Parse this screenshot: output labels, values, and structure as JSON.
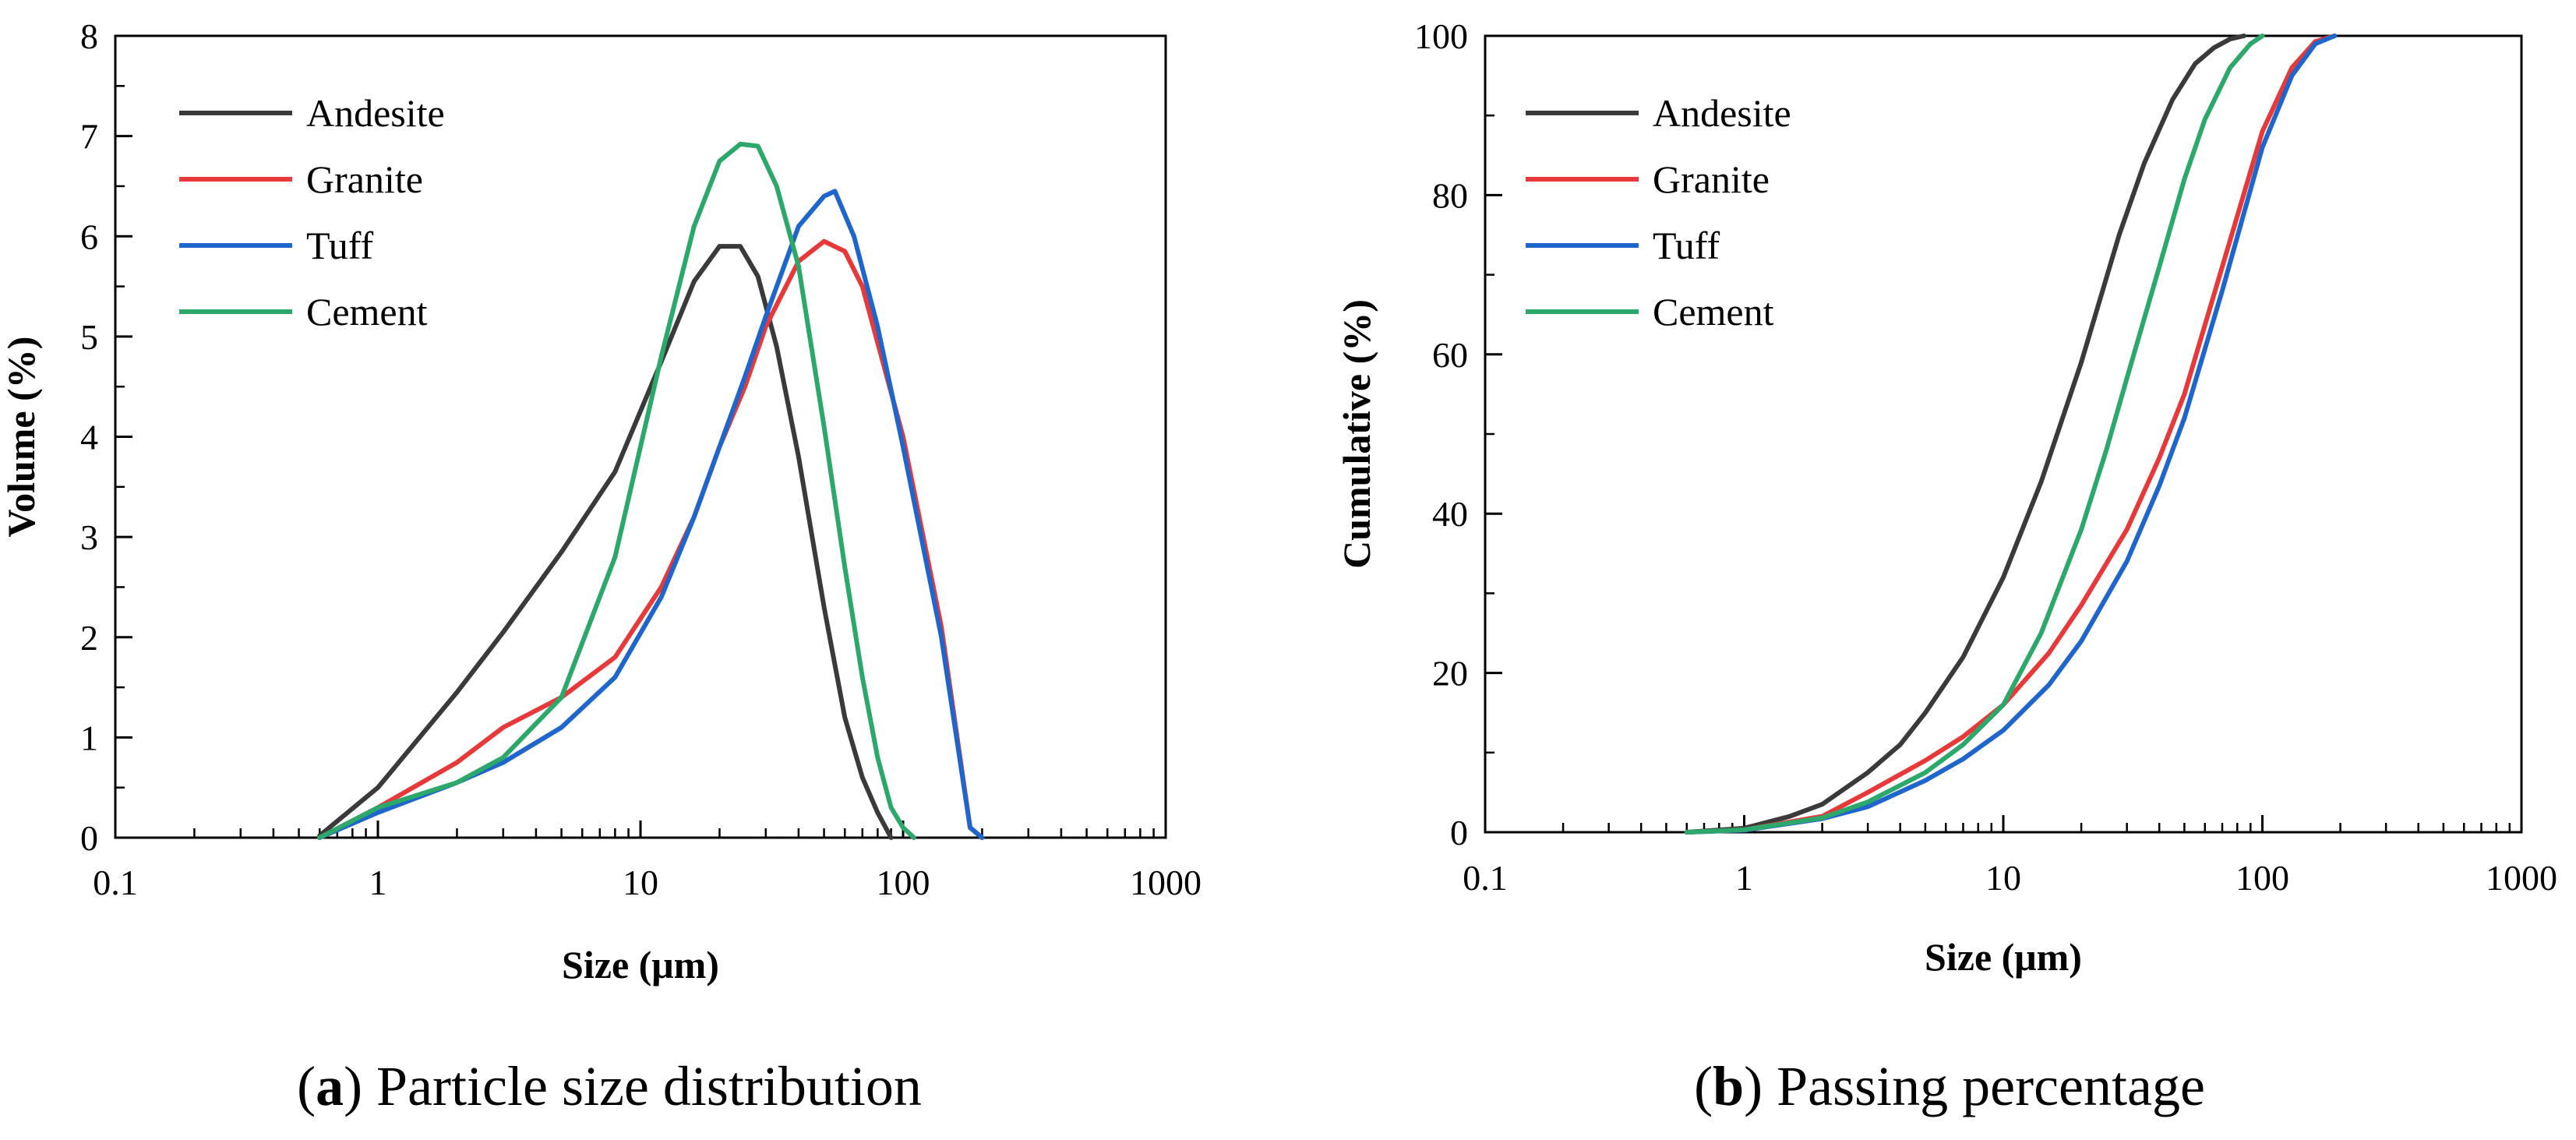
{
  "chart_data": [
    {
      "type": "line",
      "id": "a",
      "xscale": "log",
      "xlim": [
        0.1,
        1000
      ],
      "ylim": [
        0,
        8
      ],
      "xticks": [
        "0.1",
        "1",
        "10",
        "100",
        "1000"
      ],
      "yticks": [
        "0",
        "1",
        "2",
        "3",
        "4",
        "5",
        "6",
        "7",
        "8"
      ],
      "xlabel": "Size (μm)",
      "ylabel": "Volume (%)",
      "legend_position": "top-left",
      "caption_letter": "a",
      "caption_text": ") Particle size distribution",
      "caption_open": "(",
      "series": [
        {
          "name": "Andesite",
          "color": "#3a3a3a",
          "x": [
            0.6,
            1,
            2,
            3,
            5,
            8,
            12,
            16,
            20,
            24,
            28,
            33,
            40,
            50,
            60,
            70,
            80,
            90
          ],
          "y": [
            0.02,
            0.5,
            1.45,
            2.05,
            2.85,
            3.65,
            4.75,
            5.55,
            5.9,
            5.9,
            5.6,
            4.9,
            3.8,
            2.3,
            1.2,
            0.6,
            0.25,
            0.0
          ]
        },
        {
          "name": "Granite",
          "color": "#e8393a",
          "x": [
            0.6,
            1,
            2,
            3,
            5,
            8,
            12,
            16,
            20,
            25,
            30,
            40,
            50,
            60,
            70,
            100,
            140,
            180,
            200
          ],
          "y": [
            0.0,
            0.3,
            0.75,
            1.1,
            1.4,
            1.8,
            2.5,
            3.2,
            3.9,
            4.5,
            5.1,
            5.75,
            5.95,
            5.85,
            5.5,
            4.0,
            2.1,
            0.1,
            0.0
          ]
        },
        {
          "name": "Tuff",
          "color": "#1f66cc",
          "x": [
            0.6,
            1,
            2,
            3,
            5,
            8,
            12,
            16,
            20,
            25,
            30,
            40,
            50,
            55,
            65,
            80,
            100,
            140,
            180,
            200
          ],
          "y": [
            0.0,
            0.25,
            0.55,
            0.75,
            1.1,
            1.6,
            2.4,
            3.2,
            3.9,
            4.6,
            5.2,
            6.1,
            6.4,
            6.45,
            6.0,
            5.1,
            3.9,
            2.0,
            0.1,
            0.0
          ]
        },
        {
          "name": "Cement",
          "color": "#2ca86a",
          "x": [
            0.6,
            1,
            2,
            3,
            5,
            8,
            12,
            16,
            20,
            24,
            28,
            33,
            40,
            50,
            60,
            70,
            80,
            90,
            100,
            110
          ],
          "y": [
            0.0,
            0.3,
            0.55,
            0.8,
            1.4,
            2.8,
            4.8,
            6.1,
            6.75,
            6.92,
            6.9,
            6.5,
            5.7,
            4.1,
            2.7,
            1.6,
            0.8,
            0.3,
            0.1,
            0.0
          ]
        }
      ]
    },
    {
      "type": "line",
      "id": "b",
      "xscale": "log",
      "xlim": [
        0.1,
        1000
      ],
      "ylim": [
        0,
        100
      ],
      "xticks": [
        "0.1",
        "1",
        "10",
        "100",
        "1000"
      ],
      "yticks": [
        "0",
        "20",
        "40",
        "60",
        "80",
        "100"
      ],
      "xlabel": "Size (μm)",
      "ylabel": "Cumulative (%)",
      "legend_position": "top-left",
      "caption_letter": "b",
      "caption_text": ") Passing percentage",
      "caption_open": "(",
      "series": [
        {
          "name": "Andesite",
          "color": "#3a3a3a",
          "x": [
            0.6,
            1,
            1.5,
            2,
            3,
            4,
            5,
            7,
            10,
            14,
            20,
            28,
            35,
            45,
            55,
            65,
            75,
            85
          ],
          "y": [
            0.0,
            0.5,
            2.0,
            3.5,
            7.5,
            11.0,
            15.0,
            22.0,
            32.0,
            44.0,
            59.0,
            75.0,
            84.0,
            92.0,
            96.5,
            98.5,
            99.6,
            100.0
          ]
        },
        {
          "name": "Granite",
          "color": "#e8393a",
          "x": [
            0.6,
            1,
            2,
            3,
            5,
            7,
            10,
            15,
            20,
            30,
            40,
            50,
            70,
            100,
            130,
            160,
            190
          ],
          "y": [
            0.0,
            0.3,
            2.0,
            5.0,
            9.0,
            12.0,
            16.0,
            22.5,
            28.5,
            38.0,
            47.0,
            55.0,
            71.0,
            88.0,
            96.0,
            99.3,
            100.0
          ]
        },
        {
          "name": "Tuff",
          "color": "#1f66cc",
          "x": [
            0.6,
            1,
            2,
            3,
            5,
            7,
            10,
            15,
            20,
            30,
            40,
            50,
            70,
            100,
            130,
            160,
            190
          ],
          "y": [
            0.0,
            0.25,
            1.7,
            3.2,
            6.5,
            9.2,
            12.8,
            18.5,
            24.0,
            34.0,
            43.5,
            52.0,
            68.0,
            86.0,
            95.0,
            99.0,
            100.0
          ]
        },
        {
          "name": "Cement",
          "color": "#2ca86a",
          "x": [
            0.6,
            1,
            2,
            3,
            5,
            7,
            10,
            14,
            20,
            25,
            30,
            40,
            50,
            60,
            75,
            90,
            100
          ],
          "y": [
            0.0,
            0.3,
            1.8,
            3.8,
            7.5,
            11.0,
            16.0,
            25.0,
            38.0,
            48.0,
            57.0,
            71.0,
            82.0,
            89.5,
            96.0,
            99.0,
            100.0
          ]
        }
      ]
    }
  ]
}
